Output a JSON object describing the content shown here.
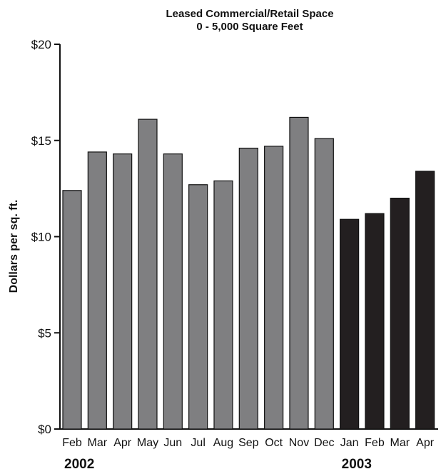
{
  "chart_data": {
    "type": "bar",
    "title_line1": "Leased Commercial/Retail Space",
    "title_line2": "0 - 5,000 Square Feet",
    "ylabel": "Dollars per sq. ft.",
    "xlabel": "",
    "ylim": [
      0,
      20
    ],
    "yticks": [
      {
        "value": 0,
        "label": "$0"
      },
      {
        "value": 5,
        "label": "$5"
      },
      {
        "value": 10,
        "label": "$10"
      },
      {
        "value": 15,
        "label": "$15"
      },
      {
        "value": 20,
        "label": "$20"
      }
    ],
    "categories": [
      "Feb",
      "Mar",
      "Apr",
      "May",
      "Jun",
      "Jul",
      "Aug",
      "Sep",
      "Oct",
      "Nov",
      "Dec",
      "Jan",
      "Feb",
      "Mar",
      "Apr"
    ],
    "values": [
      12.4,
      14.4,
      14.3,
      16.1,
      14.3,
      12.7,
      12.9,
      14.6,
      14.7,
      16.2,
      15.1,
      10.9,
      11.2,
      12.0,
      13.4
    ],
    "year_groups": [
      {
        "label": "2002",
        "start": 0,
        "end": 10,
        "color": "#7f7f81"
      },
      {
        "label": "2003",
        "start": 11,
        "end": 14,
        "color": "#231f20"
      }
    ],
    "grid": false,
    "legend": "none"
  }
}
